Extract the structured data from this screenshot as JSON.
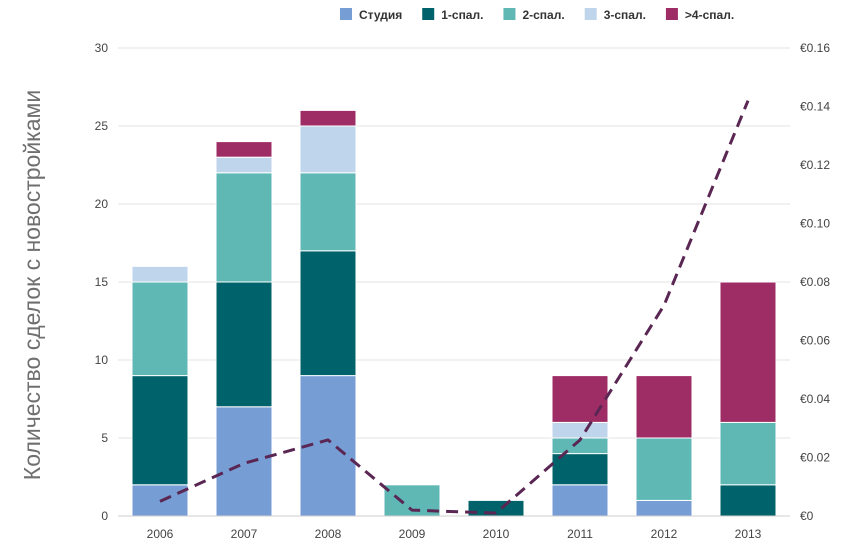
{
  "chart_data": {
    "type": "bar",
    "stacked": true,
    "title": "",
    "xlabel": "",
    "ylabel": "Количество сделок с новостройками",
    "ylim": [
      0,
      30
    ],
    "yticks": [
      0,
      5,
      10,
      15,
      20,
      25,
      30
    ],
    "ylim_right": [
      0,
      0.16
    ],
    "yticks_right": [
      "€0",
      "€0.02",
      "€0.04",
      "€0.06",
      "€0.08",
      "€0.10",
      "€0.12",
      "€0.14",
      "€0.16"
    ],
    "categories": [
      "2006",
      "2007",
      "2008",
      "2009",
      "2010",
      "2011",
      "2012",
      "2013"
    ],
    "legend_position": "top-center",
    "grid": true,
    "series": [
      {
        "name": "Студия",
        "color": "#779ed4",
        "values": [
          2,
          7,
          9,
          0,
          0,
          2,
          1,
          0
        ]
      },
      {
        "name": "1-спал.",
        "color": "#00636b",
        "values": [
          7,
          8,
          8,
          0,
          1,
          2,
          0,
          2
        ]
      },
      {
        "name": "2-спал.",
        "color": "#5fb8b4",
        "values": [
          6,
          7,
          5,
          2,
          0,
          1,
          4,
          4
        ]
      },
      {
        "name": "3-спал.",
        "color": "#bfd5eb",
        "values": [
          1,
          1,
          3,
          0,
          0,
          1,
          0,
          0
        ]
      },
      {
        "name": ">4-спал.",
        "color": "#9e2d66",
        "values": [
          0,
          1,
          1,
          0,
          0,
          3,
          4,
          9
        ]
      }
    ],
    "line_series": {
      "axis": "right",
      "style": "dashed",
      "color": "#5a2653",
      "values": [
        0.005,
        0.018,
        0.026,
        0.002,
        0.001,
        0.026,
        0.072,
        0.142
      ]
    }
  }
}
